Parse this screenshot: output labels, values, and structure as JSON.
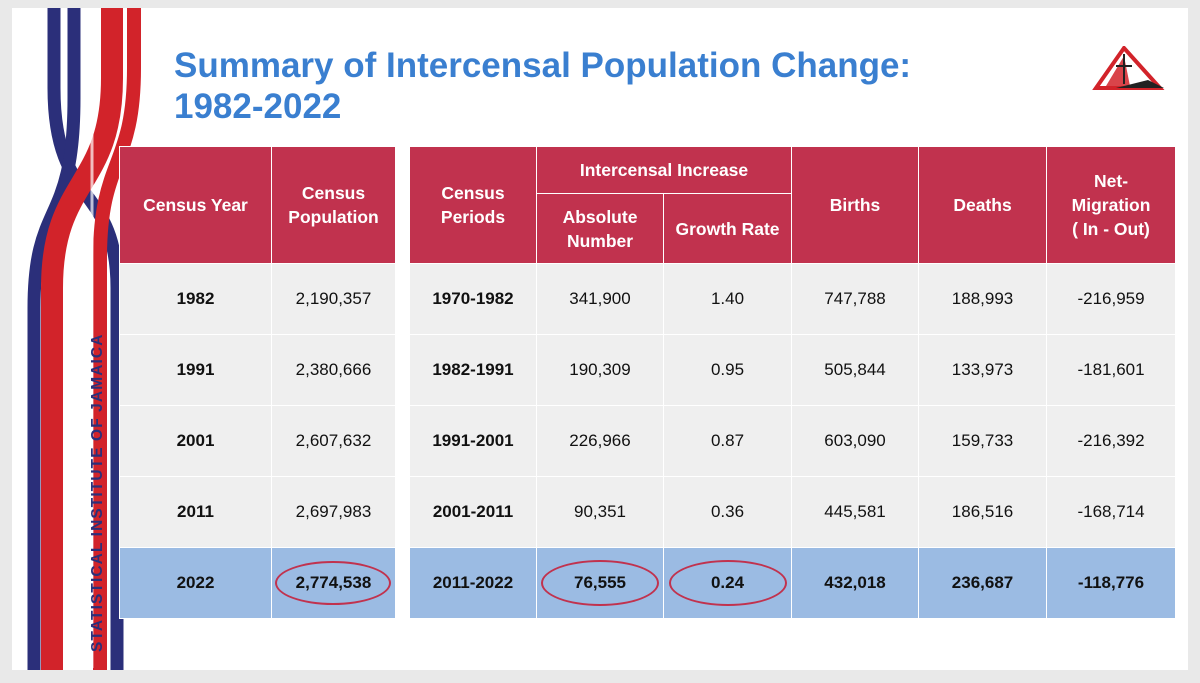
{
  "title_line1": "Summary of Intercensal Population Change:",
  "title_line2": "1982-2022",
  "side_label": "STATISTICAL INSTITUTE OF JAMAICA",
  "colors": {
    "header": "#c1324e",
    "highlight": "#9bbbe3",
    "title": "#3a7fd0"
  },
  "left_table": {
    "headers": [
      "Census Year",
      "Census Population"
    ],
    "rows": [
      [
        "1982",
        "2,190,357"
      ],
      [
        "1991",
        "2,380,666"
      ],
      [
        "2001",
        "2,607,632"
      ],
      [
        "2011",
        "2,697,983"
      ],
      [
        "2022",
        "2,774,538"
      ]
    ]
  },
  "right_table": {
    "header_periods": "Census Periods",
    "header_intercensal": "Intercensal Increase",
    "header_absolute": "Absolute Number",
    "header_growth": "Growth Rate",
    "header_births": "Births",
    "header_deaths": "Deaths",
    "header_netmig_1": "Net-",
    "header_netmig_2": "Migration",
    "header_netmig_3": "( In - Out)",
    "rows": [
      [
        "1970-1982",
        "341,900",
        "1.40",
        "747,788",
        "188,993",
        "-216,959"
      ],
      [
        "1982-1991",
        "190,309",
        "0.95",
        "505,844",
        "133,973",
        "-181,601"
      ],
      [
        "1991-2001",
        "226,966",
        "0.87",
        "603,090",
        "159,733",
        "-216,392"
      ],
      [
        "2001-2011",
        "90,351",
        "0.36",
        "445,581",
        "186,516",
        "-168,714"
      ],
      [
        "2011-2022",
        "76,555",
        "0.24",
        "432,018",
        "236,687",
        "-118,776"
      ]
    ]
  }
}
